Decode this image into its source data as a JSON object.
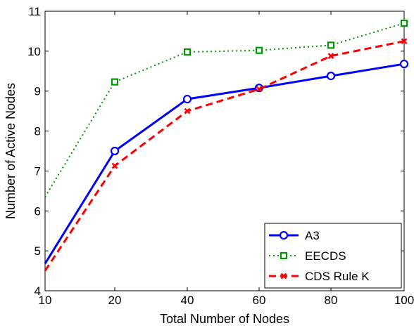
{
  "chart_data": {
    "type": "line",
    "xlabel": "Total Number of Nodes",
    "ylabel": "Number of Active Nodes",
    "xlim": [
      10,
      100
    ],
    "ylim": [
      4,
      11
    ],
    "x_tick_positions": [
      10,
      20,
      40,
      60,
      80,
      100
    ],
    "x_tick_labels": [
      "10",
      "20",
      "40",
      "60",
      "80",
      "100"
    ],
    "y_ticks": [
      4,
      5,
      6,
      7,
      8,
      9,
      10,
      11
    ],
    "y_tick_labels": [
      "4",
      "5",
      "6",
      "7",
      "8",
      "9",
      "10",
      "11"
    ],
    "grid": false,
    "legend_position": "bottom-right",
    "series": [
      {
        "name": "A3",
        "color": "#0000ff",
        "line": "solid",
        "marker": "circle",
        "x": [
          10,
          20,
          40,
          60,
          80,
          100
        ],
        "y": [
          4.68,
          7.5,
          8.8,
          9.08,
          9.38,
          9.68
        ]
      },
      {
        "name": "EECDS",
        "color": "#009900",
        "line": "dotted",
        "marker": "square",
        "x": [
          10,
          20,
          40,
          60,
          80,
          100
        ],
        "y": [
          6.35,
          9.23,
          9.98,
          10.02,
          10.15,
          10.7
        ]
      },
      {
        "name": "CDS Rule K",
        "color": "#ff0000",
        "line": "dashed",
        "marker": "x",
        "x": [
          10,
          20,
          40,
          60,
          80,
          100
        ],
        "y": [
          4.5,
          7.13,
          8.5,
          9.05,
          9.88,
          10.25
        ]
      }
    ]
  }
}
